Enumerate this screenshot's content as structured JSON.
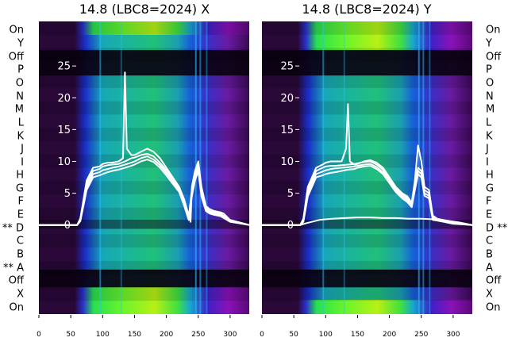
{
  "chart_data": [
    {
      "type": "heatmap",
      "title": "14.8 (LBC8=2024) X",
      "xlim": [
        0,
        330
      ],
      "xticks": [
        0,
        50,
        100,
        150,
        200,
        250,
        300
      ],
      "ylim": [
        -14,
        32
      ],
      "yticks": [
        0,
        5,
        10,
        15,
        20,
        25
      ],
      "row_labels": [
        "On",
        "Y",
        "Off",
        "P",
        "O",
        "N",
        "M",
        "L",
        "K",
        "J",
        "I",
        "H",
        "G",
        "F",
        "E",
        "** D",
        "C",
        "B",
        "** A",
        "Off",
        "X",
        "On"
      ],
      "grid": false,
      "series": [
        {
          "x": [
            0,
            60,
            65,
            75,
            85,
            95,
            100,
            108,
            115,
            125,
            132,
            135,
            138,
            145,
            150,
            160,
            170,
            180,
            190,
            200,
            210,
            220,
            228,
            235,
            238,
            240,
            245,
            250,
            255,
            262,
            268,
            275,
            280,
            285,
            290,
            300,
            330
          ],
          "y": [
            0,
            0,
            1,
            7,
            9,
            9.2,
            9.6,
            9.8,
            9.8,
            10,
            10.5,
            24,
            12,
            11,
            11,
            11.5,
            12,
            11.5,
            10.5,
            9,
            7.5,
            6,
            4,
            1.5,
            0.5,
            6,
            8.5,
            10,
            6,
            3,
            2.5,
            2.2,
            2.1,
            2,
            1.8,
            0.8,
            0
          ]
        },
        {
          "x": [
            0,
            60,
            65,
            75,
            85,
            95,
            100,
            108,
            115,
            125,
            135,
            145,
            150,
            160,
            170,
            180,
            190,
            200,
            210,
            220,
            228,
            235,
            240,
            245,
            250,
            255,
            262,
            268,
            275,
            285,
            300,
            330
          ],
          "y": [
            0,
            0,
            1,
            6.5,
            8.5,
            8.8,
            9.2,
            9.4,
            9.5,
            9.6,
            10,
            10.5,
            10.6,
            11,
            11.2,
            10.8,
            9.8,
            8.6,
            7.2,
            5.8,
            3.6,
            1.2,
            5.5,
            8,
            9.5,
            5.5,
            2.8,
            2.2,
            2,
            1.8,
            0.8,
            0
          ]
        },
        {
          "x": [
            0,
            60,
            65,
            75,
            85,
            95,
            100,
            108,
            115,
            125,
            135,
            145,
            150,
            160,
            170,
            180,
            190,
            200,
            210,
            220,
            228,
            235,
            240,
            245,
            250,
            255,
            262,
            268,
            275,
            285,
            300,
            330
          ],
          "y": [
            0,
            0,
            0.8,
            6,
            8,
            8.3,
            8.6,
            8.8,
            9,
            9.2,
            9.5,
            9.8,
            10,
            10.5,
            10.8,
            10.3,
            9.4,
            8.2,
            6.9,
            5.5,
            3.3,
            1,
            5,
            7.5,
            9,
            5,
            2.5,
            2,
            1.8,
            1.6,
            0.6,
            0
          ]
        },
        {
          "x": [
            0,
            60,
            65,
            75,
            85,
            95,
            100,
            108,
            115,
            125,
            135,
            145,
            150,
            160,
            170,
            180,
            190,
            200,
            210,
            220,
            228,
            235,
            240,
            245,
            250,
            255,
            262,
            268,
            275,
            285,
            300,
            330
          ],
          "y": [
            0,
            0,
            0.6,
            5.5,
            7.5,
            7.8,
            8,
            8.3,
            8.5,
            8.7,
            9,
            9.3,
            9.5,
            10,
            10.3,
            9.9,
            9,
            7.8,
            6.5,
            5.2,
            3,
            0.8,
            4.5,
            7,
            8.5,
            4.5,
            2.2,
            1.8,
            1.6,
            1.4,
            0.5,
            0
          ]
        }
      ]
    },
    {
      "type": "heatmap",
      "title": "14.8 (LBC8=2024) Y",
      "xlim": [
        0,
        330
      ],
      "xticks": [
        0,
        50,
        100,
        150,
        200,
        250,
        300
      ],
      "ylim": [
        -14,
        32
      ],
      "yticks": [
        0,
        5,
        10,
        15,
        20,
        25
      ],
      "row_labels": [
        "On",
        "Y",
        "Off",
        "P",
        "O",
        "N",
        "M",
        "L",
        "K",
        "J",
        "I",
        "H",
        "G",
        "F",
        "E",
        "D **",
        "C",
        "B",
        "A",
        "Off",
        "X",
        "On"
      ],
      "grid": false,
      "series": [
        {
          "x": [
            0,
            60,
            65,
            72,
            85,
            95,
            100,
            108,
            115,
            125,
            132,
            135,
            138,
            145,
            150,
            160,
            170,
            180,
            190,
            200,
            210,
            220,
            228,
            235,
            240,
            245,
            250,
            255,
            262,
            268,
            275,
            285,
            300,
            330
          ],
          "y": [
            0,
            0,
            1,
            6,
            9,
            9.5,
            9.8,
            10,
            10,
            10,
            12,
            19,
            10,
            9.5,
            9.6,
            10,
            10.2,
            9.8,
            9,
            7.5,
            6,
            5,
            4.5,
            3.5,
            7,
            12.5,
            10,
            6,
            5.5,
            1.5,
            1,
            0.8,
            0.5,
            0
          ]
        },
        {
          "x": [
            0,
            60,
            65,
            72,
            85,
            95,
            100,
            108,
            115,
            125,
            135,
            145,
            150,
            160,
            170,
            180,
            190,
            200,
            210,
            220,
            228,
            235,
            240,
            245,
            250,
            255,
            262,
            268,
            275,
            285,
            300,
            330
          ],
          "y": [
            0,
            0,
            0.8,
            5.5,
            8.5,
            9,
            9.2,
            9.3,
            9.3,
            9.4,
            9.5,
            9.6,
            9.7,
            9.9,
            10,
            9.5,
            8.7,
            7.2,
            5.8,
            4.8,
            4.2,
            3.2,
            6.5,
            9,
            8.5,
            5.5,
            5,
            1.2,
            0.9,
            0.7,
            0.4,
            0
          ]
        },
        {
          "x": [
            0,
            60,
            65,
            72,
            85,
            95,
            100,
            108,
            115,
            125,
            135,
            145,
            150,
            160,
            170,
            180,
            190,
            200,
            210,
            220,
            228,
            235,
            240,
            245,
            250,
            255,
            262,
            268,
            275,
            285,
            300,
            330
          ],
          "y": [
            0,
            0,
            0.6,
            5,
            8,
            8.4,
            8.6,
            8.8,
            8.9,
            9,
            9.1,
            9.2,
            9.3,
            9.5,
            9.6,
            9.1,
            8.3,
            6.9,
            5.5,
            4.5,
            3.9,
            3,
            6,
            8.5,
            8,
            5,
            4.6,
            1,
            0.8,
            0.6,
            0.3,
            0
          ]
        },
        {
          "x": [
            0,
            60,
            65,
            72,
            85,
            95,
            100,
            108,
            115,
            125,
            135,
            145,
            150,
            160,
            170,
            180,
            190,
            200,
            210,
            220,
            228,
            235,
            240,
            245,
            250,
            255,
            262,
            268,
            275,
            285,
            300,
            330
          ],
          "y": [
            0,
            0,
            0.5,
            4.5,
            7.5,
            7.8,
            8,
            8.2,
            8.3,
            8.5,
            8.7,
            8.8,
            9,
            9.2,
            9.3,
            8.8,
            8,
            6.6,
            5.2,
            4.2,
            3.6,
            2.8,
            5.5,
            8,
            7.5,
            4.6,
            4.2,
            0.8,
            0.7,
            0.5,
            0.2,
            0
          ]
        },
        {
          "x": [
            0,
            60,
            70,
            90,
            110,
            130,
            150,
            170,
            190,
            210,
            230,
            250,
            270,
            290,
            310,
            330
          ],
          "y": [
            0,
            0,
            0.3,
            0.8,
            1,
            1.1,
            1.2,
            1.2,
            1.1,
            1.1,
            1.0,
            1.0,
            0.9,
            0.7,
            0.4,
            0
          ]
        }
      ]
    }
  ]
}
